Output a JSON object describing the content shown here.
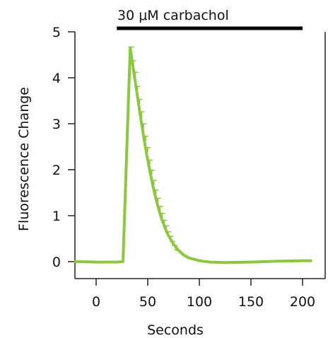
{
  "chart_data": {
    "type": "line",
    "title": "",
    "xlabel": "Seconds",
    "ylabel": "Fluorescence Change",
    "xlim": [
      -20,
      210
    ],
    "ylim": [
      -0.3,
      5
    ],
    "xticks": [
      0,
      50,
      100,
      150,
      200
    ],
    "yticks": [
      0,
      1,
      2,
      3,
      4,
      5
    ],
    "grid": false,
    "series": [
      {
        "color": "#8dc63f",
        "x": [
          -20,
          0,
          10,
          20,
          26,
          33,
          37,
          40,
          43,
          46,
          49,
          52,
          55,
          58,
          61,
          64,
          67,
          70,
          75,
          80,
          85,
          90,
          100,
          110,
          125,
          150,
          175,
          200,
          208
        ],
        "y": [
          0.0,
          -0.01,
          -0.01,
          -0.01,
          0.0,
          4.65,
          4.05,
          3.6,
          3.15,
          2.72,
          2.33,
          1.98,
          1.65,
          1.36,
          1.11,
          0.9,
          0.72,
          0.57,
          0.38,
          0.24,
          0.14,
          0.08,
          0.02,
          -0.01,
          -0.02,
          -0.01,
          0.01,
          0.02,
          0.02
        ]
      }
    ],
    "error_bars": {
      "color": "#8dc63f",
      "x": [
        34,
        36,
        38,
        40,
        42,
        44,
        46,
        48,
        50,
        52,
        54,
        56,
        58,
        60,
        62,
        64,
        66,
        68,
        70,
        72,
        74,
        76,
        78
      ],
      "y": [
        4.55,
        4.25,
        4.0,
        3.7,
        3.42,
        3.15,
        2.9,
        2.63,
        2.38,
        2.12,
        1.9,
        1.68,
        1.48,
        1.3,
        1.13,
        0.98,
        0.84,
        0.72,
        0.6,
        0.5,
        0.4,
        0.31,
        0.23
      ],
      "err": [
        0.12,
        0.12,
        0.12,
        0.11,
        0.11,
        0.11,
        0.1,
        0.1,
        0.1,
        0.09,
        0.09,
        0.09,
        0.08,
        0.08,
        0.07,
        0.07,
        0.06,
        0.06,
        0.05,
        0.05,
        0.04,
        0.04,
        0.03
      ]
    },
    "annotation": {
      "text": "30 μM carbachol",
      "x_start": 20,
      "x_end": 200,
      "color": "#000000"
    }
  }
}
